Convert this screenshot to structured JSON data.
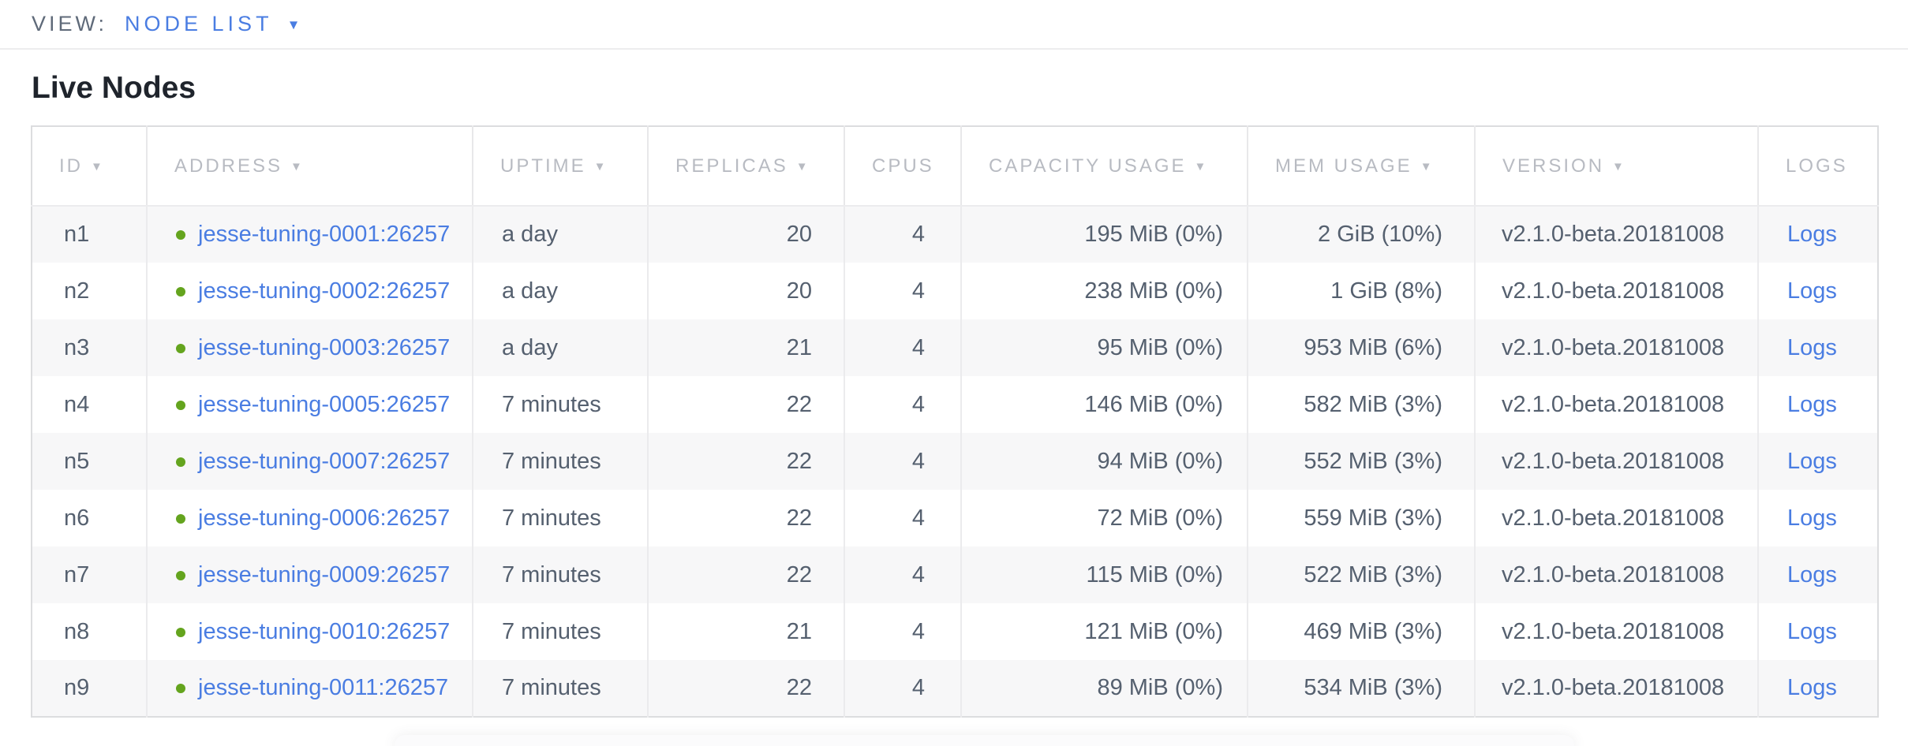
{
  "view_bar": {
    "label": "VIEW:",
    "selected": "NODE LIST",
    "dropdown_icon": "chevron-down"
  },
  "page": {
    "title": "Live Nodes"
  },
  "table": {
    "columns": [
      {
        "key": "id",
        "label": "ID",
        "sortable": true,
        "align": "left"
      },
      {
        "key": "address",
        "label": "ADDRESS",
        "sortable": true,
        "align": "left"
      },
      {
        "key": "uptime",
        "label": "UPTIME",
        "sortable": true,
        "align": "left"
      },
      {
        "key": "replicas",
        "label": "REPLICAS",
        "sortable": true,
        "align": "right"
      },
      {
        "key": "cpus",
        "label": "CPUS",
        "sortable": false,
        "align": "right"
      },
      {
        "key": "capacity_usage",
        "label": "CAPACITY USAGE",
        "sortable": true,
        "align": "right"
      },
      {
        "key": "mem_usage",
        "label": "MEM USAGE",
        "sortable": true,
        "align": "right"
      },
      {
        "key": "version",
        "label": "VERSION",
        "sortable": true,
        "align": "left"
      },
      {
        "key": "logs",
        "label": "LOGS",
        "sortable": false,
        "align": "left"
      }
    ],
    "sort_icon": "▼",
    "status_icon": "green-dot",
    "rows": [
      {
        "id": "n1",
        "address": "jesse-tuning-0001:26257",
        "uptime": "a day",
        "replicas": "20",
        "cpus": "4",
        "capacity_usage": "195 MiB (0%)",
        "mem_usage": "2 GiB (10%)",
        "version": "v2.1.0-beta.20181008",
        "logs": "Logs"
      },
      {
        "id": "n2",
        "address": "jesse-tuning-0002:26257",
        "uptime": "a day",
        "replicas": "20",
        "cpus": "4",
        "capacity_usage": "238 MiB (0%)",
        "mem_usage": "1 GiB (8%)",
        "version": "v2.1.0-beta.20181008",
        "logs": "Logs"
      },
      {
        "id": "n3",
        "address": "jesse-tuning-0003:26257",
        "uptime": "a day",
        "replicas": "21",
        "cpus": "4",
        "capacity_usage": "95 MiB (0%)",
        "mem_usage": "953 MiB (6%)",
        "version": "v2.1.0-beta.20181008",
        "logs": "Logs"
      },
      {
        "id": "n4",
        "address": "jesse-tuning-0005:26257",
        "uptime": "7 minutes",
        "replicas": "22",
        "cpus": "4",
        "capacity_usage": "146 MiB (0%)",
        "mem_usage": "582 MiB (3%)",
        "version": "v2.1.0-beta.20181008",
        "logs": "Logs"
      },
      {
        "id": "n5",
        "address": "jesse-tuning-0007:26257",
        "uptime": "7 minutes",
        "replicas": "22",
        "cpus": "4",
        "capacity_usage": "94 MiB (0%)",
        "mem_usage": "552 MiB (3%)",
        "version": "v2.1.0-beta.20181008",
        "logs": "Logs"
      },
      {
        "id": "n6",
        "address": "jesse-tuning-0006:26257",
        "uptime": "7 minutes",
        "replicas": "22",
        "cpus": "4",
        "capacity_usage": "72 MiB (0%)",
        "mem_usage": "559 MiB (3%)",
        "version": "v2.1.0-beta.20181008",
        "logs": "Logs"
      },
      {
        "id": "n7",
        "address": "jesse-tuning-0009:26257",
        "uptime": "7 minutes",
        "replicas": "22",
        "cpus": "4",
        "capacity_usage": "115 MiB (0%)",
        "mem_usage": "522 MiB (3%)",
        "version": "v2.1.0-beta.20181008",
        "logs": "Logs"
      },
      {
        "id": "n8",
        "address": "jesse-tuning-0010:26257",
        "uptime": "7 minutes",
        "replicas": "21",
        "cpus": "4",
        "capacity_usage": "121 MiB (0%)",
        "mem_usage": "469 MiB (3%)",
        "version": "v2.1.0-beta.20181008",
        "logs": "Logs"
      },
      {
        "id": "n9",
        "address": "jesse-tuning-0011:26257",
        "uptime": "7 minutes",
        "replicas": "22",
        "cpus": "4",
        "capacity_usage": "89 MiB (0%)",
        "mem_usage": "534 MiB (3%)",
        "version": "v2.1.0-beta.20181008",
        "logs": "Logs"
      }
    ]
  },
  "colors": {
    "link_blue": "#4a7de2",
    "live_green": "#64a41e",
    "header_gray": "#b8bbc2",
    "cell_text": "#55606f",
    "row_stripe": "#f7f7f8",
    "table_border": "#dcdddf"
  }
}
